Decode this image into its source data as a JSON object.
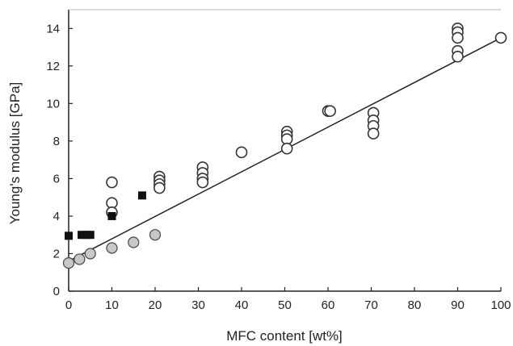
{
  "chart_data": {
    "type": "scatter",
    "xlabel": "MFC content [wt%]",
    "ylabel": "Young's modulus [GPa]",
    "xlim": [
      0,
      100
    ],
    "ylim": [
      0,
      15
    ],
    "x_ticks": [
      0,
      10,
      20,
      30,
      40,
      50,
      60,
      70,
      80,
      90,
      100
    ],
    "y_ticks": [
      0,
      2,
      4,
      6,
      8,
      10,
      12,
      14
    ],
    "grid": false,
    "legend": "none",
    "series": [
      {
        "marker": "open-circle",
        "color": "#333333",
        "points": [
          [
            10,
            5.8
          ],
          [
            10,
            4.7
          ],
          [
            10,
            4.2
          ],
          [
            21,
            6.1
          ],
          [
            21,
            5.9
          ],
          [
            21,
            5.7
          ],
          [
            21,
            5.5
          ],
          [
            31,
            6.6
          ],
          [
            31,
            6.3
          ],
          [
            31,
            6.0
          ],
          [
            31,
            5.8
          ],
          [
            40,
            7.4
          ],
          [
            50.5,
            8.5
          ],
          [
            50.5,
            8.3
          ],
          [
            50.5,
            8.1
          ],
          [
            50.5,
            7.6
          ],
          [
            60,
            9.6
          ],
          [
            60.5,
            9.6
          ],
          [
            70.5,
            9.5
          ],
          [
            70.5,
            9.1
          ],
          [
            70.5,
            8.8
          ],
          [
            70.5,
            8.4
          ],
          [
            90,
            14.0
          ],
          [
            90,
            13.8
          ],
          [
            90,
            13.5
          ],
          [
            90,
            12.8
          ],
          [
            90,
            12.5
          ],
          [
            100,
            13.5
          ]
        ]
      },
      {
        "marker": "filled-circle-grey",
        "color": "#c8c8c8",
        "points": [
          [
            0,
            1.5
          ],
          [
            2.5,
            1.7
          ],
          [
            5,
            2.0
          ],
          [
            10,
            2.3
          ],
          [
            15,
            2.6
          ],
          [
            20,
            3.0
          ]
        ]
      },
      {
        "marker": "filled-square",
        "color": "#111111",
        "points": [
          [
            0,
            2.95
          ],
          [
            3,
            3.0
          ],
          [
            4,
            3.0
          ],
          [
            5,
            3.0
          ],
          [
            10,
            4.0
          ],
          [
            17,
            5.1
          ]
        ]
      }
    ],
    "fit_line": {
      "x": [
        0,
        100
      ],
      "y": [
        1.6,
        13.5
      ]
    }
  }
}
